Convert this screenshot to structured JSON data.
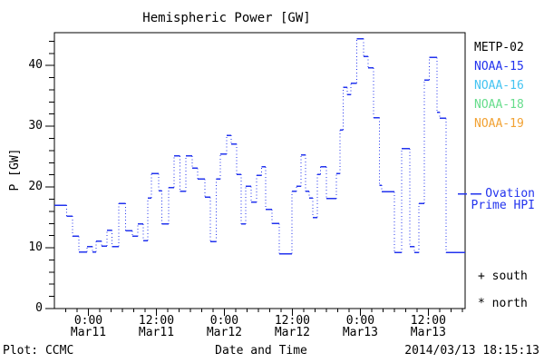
{
  "title": "Hemispheric Power [GW]",
  "colors": {
    "curve": "#2233ee",
    "black": "#000000",
    "noaa16": "#44c4f2",
    "noaa18": "#66dd8c",
    "noaa19": "#f2a233",
    "background": "#ffffff"
  },
  "legend": {
    "satellites": [
      {
        "label": "METP-02",
        "color": "#000000"
      },
      {
        "label": "NOAA-15",
        "color": "#2233ee"
      },
      {
        "label": "NOAA-16",
        "color": "#44c4f2"
      },
      {
        "label": "NOAA-18",
        "color": "#66dd8c"
      },
      {
        "label": "NOAA-19",
        "color": "#f2a233"
      }
    ],
    "ovation": {
      "line1": "Ovation",
      "line2": "Prime HPI",
      "color": "#2233ee"
    },
    "markers": [
      {
        "symbol": "+",
        "label": "south"
      },
      {
        "symbol": "*",
        "label": "north"
      }
    ]
  },
  "footer": {
    "left": "Plot: CCMC",
    "timestamp": "2014/03/13 18:15:13"
  },
  "chart_data": {
    "type": "line",
    "title": "Hemispheric Power [GW]",
    "xlabel": "Date and Time",
    "ylabel": "P [GW]",
    "series_name": "Ovation Prime HPI",
    "line_style": "blue steps: solid horizontals, dotted vertical connectors",
    "ylim": [
      0,
      45.4
    ],
    "yticks": [
      0,
      10,
      20,
      30,
      40
    ],
    "y_minor_step": 2,
    "x_hours_total": 72.5,
    "x_axis_start": "Mar10 18:00",
    "x_minor_step_hours": 2,
    "xticks": [
      {
        "t": 6,
        "line1": "0:00",
        "line2": "Mar11"
      },
      {
        "t": 18,
        "line1": "12:00",
        "line2": "Mar11"
      },
      {
        "t": 30,
        "line1": "0:00",
        "line2": "Mar12"
      },
      {
        "t": 42,
        "line1": "12:00",
        "line2": "Mar12"
      },
      {
        "t": 54,
        "line1": "0:00",
        "line2": "Mar13"
      },
      {
        "t": 66,
        "line1": "12:00",
        "line2": "Mar13"
      }
    ],
    "segments_t_hours_value_gw": [
      [
        0,
        2.2,
        17
      ],
      [
        2.2,
        3.2,
        15.2
      ],
      [
        3.2,
        4.3,
        11.9
      ],
      [
        4.3,
        5.8,
        9.3
      ],
      [
        5.8,
        6.7,
        10.2
      ],
      [
        6.7,
        7.4,
        9.3
      ],
      [
        7.4,
        8.3,
        11.1
      ],
      [
        8.3,
        9.3,
        10.3
      ],
      [
        9.3,
        10.2,
        12.9
      ],
      [
        10.2,
        11.4,
        10.2
      ],
      [
        11.4,
        12.6,
        17.3
      ],
      [
        12.6,
        13.8,
        12.8
      ],
      [
        13.8,
        14.7,
        11.9
      ],
      [
        14.7,
        15.7,
        13.9
      ],
      [
        15.7,
        16.5,
        11.2
      ],
      [
        16.5,
        17.1,
        18.2
      ],
      [
        17.1,
        18.4,
        22.2
      ],
      [
        18.4,
        19,
        19.4
      ],
      [
        19,
        20.2,
        13.9
      ],
      [
        20.2,
        21.1,
        19.9
      ],
      [
        21.1,
        22.2,
        25.1
      ],
      [
        22.2,
        23.2,
        19.3
      ],
      [
        23.2,
        24.3,
        25.1
      ],
      [
        24.3,
        25.3,
        23.1
      ],
      [
        25.3,
        26.6,
        21.3
      ],
      [
        26.6,
        27.5,
        18.3
      ],
      [
        27.5,
        28.6,
        11
      ],
      [
        28.6,
        29.3,
        21.3
      ],
      [
        29.3,
        30.4,
        25.4
      ],
      [
        30.4,
        31.2,
        28.5
      ],
      [
        31.2,
        32.2,
        27.1
      ],
      [
        32.2,
        33,
        22.1
      ],
      [
        33,
        33.8,
        13.9
      ],
      [
        33.8,
        34.7,
        20.1
      ],
      [
        34.7,
        35.7,
        17.5
      ],
      [
        35.7,
        36.6,
        21.9
      ],
      [
        36.6,
        37.3,
        23.3
      ],
      [
        37.3,
        38.4,
        16.3
      ],
      [
        38.4,
        39.7,
        14
      ],
      [
        39.7,
        41.9,
        9
      ],
      [
        41.9,
        42.7,
        19.3
      ],
      [
        42.7,
        43.5,
        20.1
      ],
      [
        43.5,
        44.3,
        25.3
      ],
      [
        44.3,
        45,
        19.3
      ],
      [
        45,
        45.6,
        18.2
      ],
      [
        45.6,
        46.4,
        15
      ],
      [
        46.4,
        47,
        22.1
      ],
      [
        47,
        48,
        23.3
      ],
      [
        48,
        49.8,
        18.1
      ],
      [
        49.8,
        50.4,
        22.2
      ],
      [
        50.4,
        51,
        29.4
      ],
      [
        51,
        51.7,
        36.4
      ],
      [
        51.7,
        52.3,
        35.2
      ],
      [
        52.3,
        53.4,
        37.1
      ],
      [
        53.4,
        54.6,
        44.4
      ],
      [
        54.6,
        55.4,
        41.5
      ],
      [
        55.4,
        56.3,
        39.6
      ],
      [
        56.3,
        57.4,
        31.4
      ],
      [
        57.4,
        57.8,
        20.3
      ],
      [
        57.8,
        60,
        19.2
      ],
      [
        60,
        61.3,
        9.2
      ],
      [
        61.3,
        62.7,
        26.3
      ],
      [
        62.7,
        63.5,
        10.2
      ],
      [
        63.5,
        64.3,
        9.2
      ],
      [
        64.3,
        65.3,
        17.3
      ],
      [
        65.3,
        66.2,
        37.6
      ],
      [
        66.2,
        67.5,
        41.3
      ],
      [
        67.5,
        68,
        32.3
      ],
      [
        68,
        69.1,
        31.3
      ],
      [
        69.1,
        72.5,
        9.2
      ]
    ]
  }
}
